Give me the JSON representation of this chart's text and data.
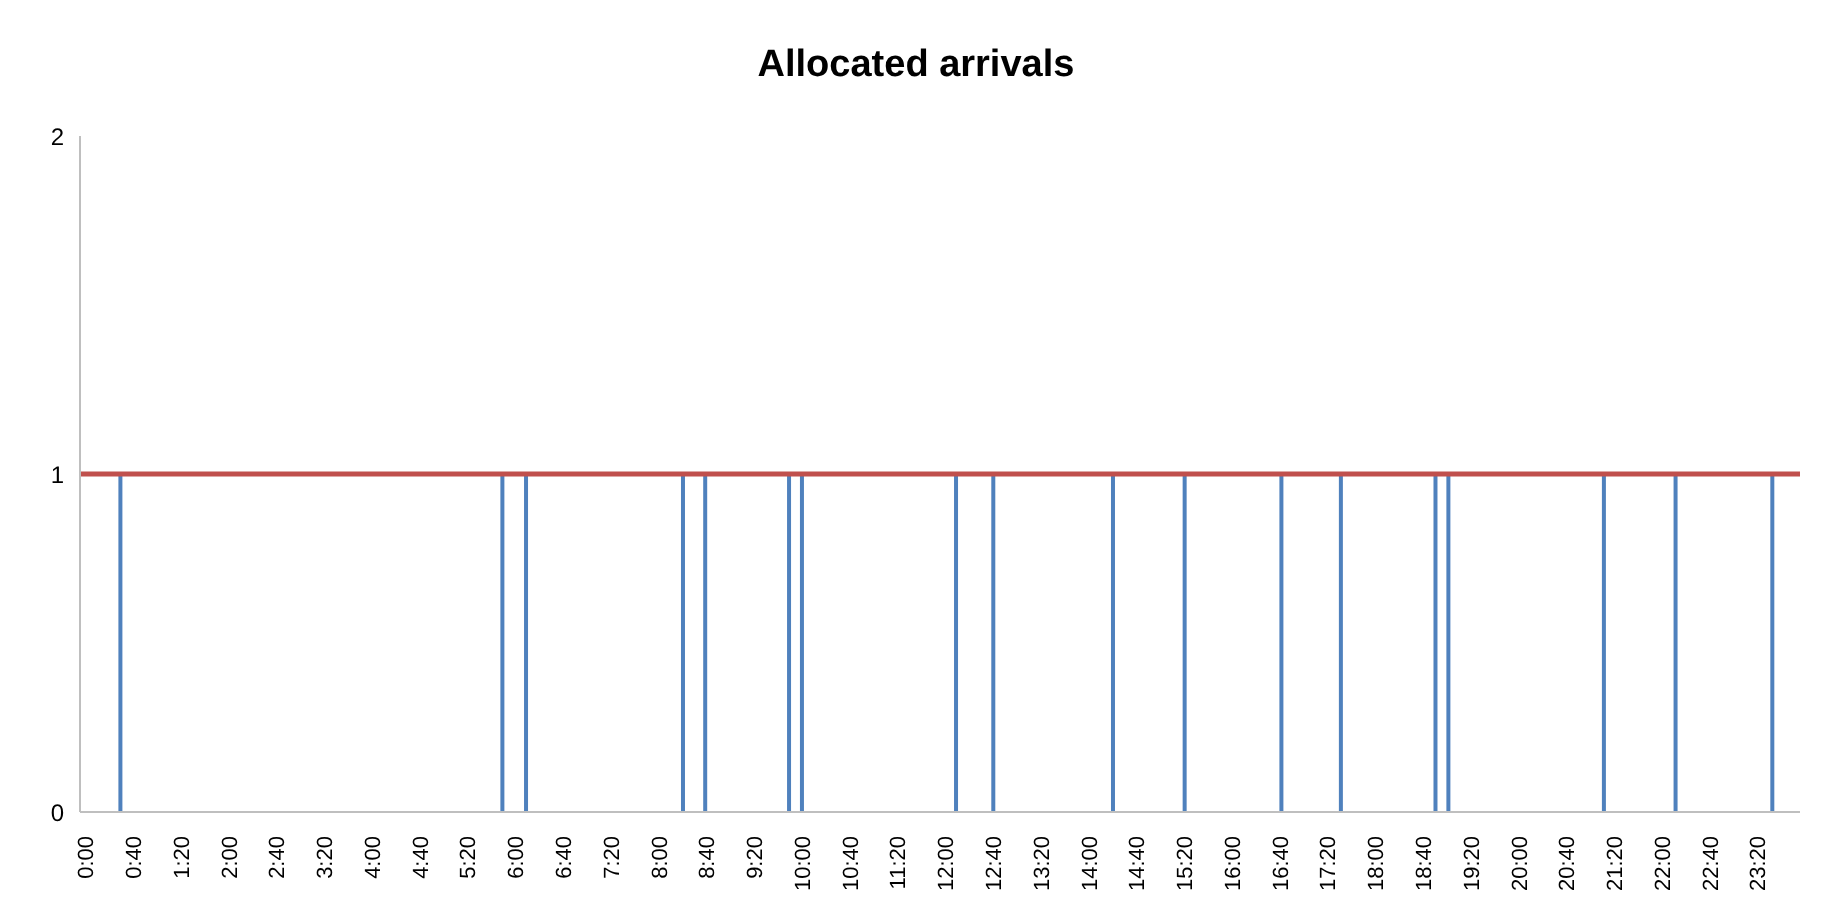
{
  "chart_data": {
    "type": "bar",
    "title": "Allocated arrivals",
    "xlim": [
      -0.1,
      23.9
    ],
    "xticks": [
      {
        "value": 0,
        "label": "0:00"
      },
      {
        "value": 0.6667,
        "label": "0:40"
      },
      {
        "value": 1.3333,
        "label": "1:20"
      },
      {
        "value": 2,
        "label": "2:00"
      },
      {
        "value": 2.6667,
        "label": "2:40"
      },
      {
        "value": 3.3333,
        "label": "3:20"
      },
      {
        "value": 4,
        "label": "4:00"
      },
      {
        "value": 4.6667,
        "label": "4:40"
      },
      {
        "value": 5.3333,
        "label": "5:20"
      },
      {
        "value": 6,
        "label": "6:00"
      },
      {
        "value": 6.6667,
        "label": "6:40"
      },
      {
        "value": 7.3333,
        "label": "7:20"
      },
      {
        "value": 8,
        "label": "8:00"
      },
      {
        "value": 8.6667,
        "label": "8:40"
      },
      {
        "value": 9.3333,
        "label": "9:20"
      },
      {
        "value": 10,
        "label": "10:00"
      },
      {
        "value": 10.6667,
        "label": "10:40"
      },
      {
        "value": 11.3333,
        "label": "11:20"
      },
      {
        "value": 12,
        "label": "12:00"
      },
      {
        "value": 12.6667,
        "label": "12:40"
      },
      {
        "value": 13.3333,
        "label": "13:20"
      },
      {
        "value": 14,
        "label": "14:00"
      },
      {
        "value": 14.6667,
        "label": "14:40"
      },
      {
        "value": 15.3333,
        "label": "15:20"
      },
      {
        "value": 16,
        "label": "16:00"
      },
      {
        "value": 16.6667,
        "label": "16:40"
      },
      {
        "value": 17.3333,
        "label": "17:20"
      },
      {
        "value": 18,
        "label": "18:00"
      },
      {
        "value": 18.6667,
        "label": "18:40"
      },
      {
        "value": 19.3333,
        "label": "19:20"
      },
      {
        "value": 20,
        "label": "20:00"
      },
      {
        "value": 20.6667,
        "label": "20:40"
      },
      {
        "value": 21.3333,
        "label": "21:20"
      },
      {
        "value": 22,
        "label": "22:00"
      },
      {
        "value": 22.6667,
        "label": "22:40"
      },
      {
        "value": 23.3333,
        "label": "23:20"
      }
    ],
    "ylim": [
      0,
      2
    ],
    "yticks": [
      0,
      1,
      2
    ],
    "series": [
      {
        "color": "#4f81bd",
        "x": [
          0.47,
          5.8,
          6.13,
          8.32,
          8.63,
          9.8,
          9.98,
          12.13,
          12.65,
          14.32,
          15.32,
          16.67,
          17.5,
          18.82,
          19,
          21.17,
          22.17,
          23.52
        ],
        "values": [
          1,
          1,
          1,
          1,
          1,
          1,
          1,
          1,
          1,
          1,
          1,
          1,
          1,
          1,
          1,
          1,
          1,
          1
        ]
      },
      {
        "type": "line",
        "color": "#c0504d",
        "x": [
          -0.1,
          23.9
        ],
        "values": [
          1,
          1
        ]
      }
    ]
  }
}
